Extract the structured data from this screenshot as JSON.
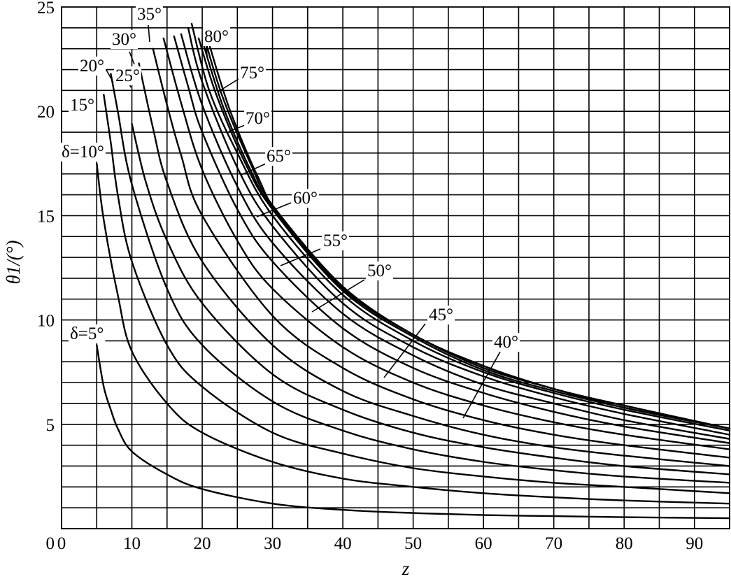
{
  "chart_data": {
    "type": "line",
    "xlabel": "z",
    "ylabel": "θ1/(°)",
    "xlim": [
      0,
      95
    ],
    "ylim": [
      0,
      25
    ],
    "x_ticks": [
      "0",
      "10",
      "20",
      "30",
      "40",
      "50",
      "60",
      "70",
      "80",
      "90"
    ],
    "y_ticks": [
      "0",
      "5",
      "10",
      "15",
      "20",
      "25"
    ],
    "grid": true,
    "series": [
      {
        "name": "δ=5°",
        "points": [
          [
            5,
            8.8
          ],
          [
            6,
            6.8
          ],
          [
            7,
            5.7
          ],
          [
            8,
            4.8
          ],
          [
            10,
            3.7
          ],
          [
            15,
            2.6
          ],
          [
            20,
            1.9
          ],
          [
            30,
            1.2
          ],
          [
            40,
            0.9
          ],
          [
            50,
            0.75
          ],
          [
            60,
            0.65
          ],
          [
            70,
            0.6
          ],
          [
            80,
            0.55
          ],
          [
            95,
            0.5
          ]
        ]
      },
      {
        "name": "δ=10°",
        "points": [
          [
            5,
            17.5
          ],
          [
            6,
            14.8
          ],
          [
            8,
            11.2
          ],
          [
            10,
            8.5
          ],
          [
            15,
            6.0
          ],
          [
            20,
            4.6
          ],
          [
            30,
            3.2
          ],
          [
            40,
            2.4
          ],
          [
            50,
            2.0
          ],
          [
            60,
            1.7
          ],
          [
            70,
            1.5
          ],
          [
            80,
            1.35
          ],
          [
            95,
            1.2
          ]
        ]
      },
      {
        "name": "15°",
        "points": [
          [
            6,
            20.8
          ],
          [
            7,
            18.5
          ],
          [
            8,
            16.0
          ],
          [
            10,
            12.8
          ],
          [
            15,
            8.8
          ],
          [
            20,
            6.8
          ],
          [
            30,
            4.6
          ],
          [
            40,
            3.6
          ],
          [
            50,
            2.9
          ],
          [
            60,
            2.5
          ],
          [
            70,
            2.2
          ],
          [
            80,
            2.0
          ],
          [
            95,
            1.7
          ]
        ]
      },
      {
        "name": "20°",
        "points": [
          [
            7,
            21.8
          ],
          [
            8,
            20.0
          ],
          [
            10,
            16.5
          ],
          [
            15,
            11.5
          ],
          [
            20,
            8.8
          ],
          [
            30,
            6.1
          ],
          [
            40,
            4.7
          ],
          [
            50,
            3.8
          ],
          [
            60,
            3.2
          ],
          [
            70,
            2.8
          ],
          [
            80,
            2.5
          ],
          [
            95,
            2.2
          ]
        ]
      },
      {
        "name": "25°",
        "points": [
          [
            10,
            19.4
          ],
          [
            12,
            16.6
          ],
          [
            15,
            13.8
          ],
          [
            20,
            10.8
          ],
          [
            30,
            7.4
          ],
          [
            40,
            5.7
          ],
          [
            50,
            4.6
          ],
          [
            60,
            3.9
          ],
          [
            70,
            3.4
          ],
          [
            80,
            3.0
          ],
          [
            95,
            2.6
          ]
        ]
      },
      {
        "name": "30°",
        "points": [
          [
            11,
            22.3
          ],
          [
            13,
            19.2
          ],
          [
            15,
            16.6
          ],
          [
            20,
            12.8
          ],
          [
            30,
            8.8
          ],
          [
            40,
            6.6
          ],
          [
            50,
            5.4
          ],
          [
            60,
            4.5
          ],
          [
            70,
            3.9
          ],
          [
            80,
            3.5
          ],
          [
            95,
            3.0
          ]
        ]
      },
      {
        "name": "35°",
        "points": [
          [
            13,
            23.0
          ],
          [
            15,
            20.3
          ],
          [
            17,
            17.9
          ],
          [
            20,
            15.0
          ],
          [
            30,
            10.2
          ],
          [
            40,
            7.7
          ],
          [
            50,
            6.2
          ],
          [
            60,
            5.2
          ],
          [
            70,
            4.5
          ],
          [
            80,
            4.0
          ],
          [
            95,
            3.4
          ]
        ]
      },
      {
        "name": "40°",
        "points": [
          [
            14.5,
            23.5
          ],
          [
            17,
            20.4
          ],
          [
            20,
            17.2
          ],
          [
            25,
            13.8
          ],
          [
            30,
            11.5
          ],
          [
            40,
            8.7
          ],
          [
            50,
            7.0
          ],
          [
            60,
            5.9
          ],
          [
            70,
            5.1
          ],
          [
            80,
            4.5
          ],
          [
            95,
            3.8
          ]
        ]
      },
      {
        "name": "45°",
        "points": [
          [
            16,
            23.6
          ],
          [
            18,
            21.2
          ],
          [
            20,
            19.0
          ],
          [
            25,
            15.3
          ],
          [
            30,
            12.8
          ],
          [
            40,
            9.6
          ],
          [
            50,
            7.7
          ],
          [
            60,
            6.5
          ],
          [
            70,
            5.6
          ],
          [
            80,
            4.9
          ],
          [
            95,
            4.1
          ]
        ]
      },
      {
        "name": "50°",
        "points": [
          [
            17,
            23.7
          ],
          [
            20,
            20.3
          ],
          [
            25,
            16.4
          ],
          [
            30,
            13.7
          ],
          [
            40,
            10.3
          ],
          [
            50,
            8.3
          ],
          [
            60,
            6.9
          ],
          [
            70,
            6.0
          ],
          [
            80,
            5.2
          ],
          [
            95,
            4.3
          ]
        ]
      },
      {
        "name": "55°",
        "points": [
          [
            18,
            24.0
          ],
          [
            20,
            21.4
          ],
          [
            25,
            17.3
          ],
          [
            30,
            14.5
          ],
          [
            40,
            10.8
          ],
          [
            50,
            8.7
          ],
          [
            60,
            7.3
          ],
          [
            70,
            6.3
          ],
          [
            80,
            5.5
          ],
          [
            95,
            4.5
          ]
        ]
      },
      {
        "name": "60°",
        "points": [
          [
            18.5,
            24.2
          ],
          [
            21,
            21.0
          ],
          [
            25,
            18.0
          ],
          [
            30,
            15.0
          ],
          [
            40,
            11.2
          ],
          [
            50,
            9.0
          ],
          [
            60,
            7.5
          ],
          [
            70,
            6.5
          ],
          [
            80,
            5.7
          ],
          [
            95,
            4.7
          ]
        ]
      },
      {
        "name": "65°",
        "points": [
          [
            19.5,
            23.5
          ],
          [
            22,
            20.8
          ],
          [
            26,
            17.6
          ],
          [
            30,
            15.3
          ],
          [
            40,
            11.4
          ],
          [
            50,
            9.2
          ],
          [
            60,
            7.6
          ],
          [
            70,
            6.6
          ],
          [
            80,
            5.8
          ],
          [
            95,
            4.8
          ]
        ]
      },
      {
        "name": "70°",
        "points": [
          [
            20,
            23.4
          ],
          [
            23,
            20.2
          ],
          [
            27,
            17.1
          ],
          [
            30,
            15.4
          ],
          [
            40,
            11.5
          ],
          [
            50,
            9.3
          ],
          [
            60,
            7.7
          ],
          [
            70,
            6.7
          ],
          [
            80,
            5.8
          ],
          [
            95,
            4.8
          ]
        ]
      },
      {
        "name": "75°",
        "points": [
          [
            20.5,
            23.3
          ],
          [
            23,
            20.6
          ],
          [
            27,
            17.4
          ],
          [
            30,
            15.5
          ],
          [
            40,
            11.6
          ],
          [
            50,
            9.3
          ],
          [
            60,
            7.8
          ],
          [
            70,
            6.7
          ],
          [
            80,
            5.9
          ],
          [
            95,
            4.8
          ]
        ]
      },
      {
        "name": "80°",
        "points": [
          [
            21,
            23.2
          ],
          [
            24,
            20.0
          ],
          [
            28,
            16.8
          ],
          [
            31,
            15.0
          ],
          [
            40,
            11.6
          ],
          [
            50,
            9.3
          ],
          [
            60,
            7.8
          ],
          [
            70,
            6.7
          ],
          [
            80,
            5.9
          ],
          [
            95,
            4.8
          ]
        ]
      }
    ]
  }
}
